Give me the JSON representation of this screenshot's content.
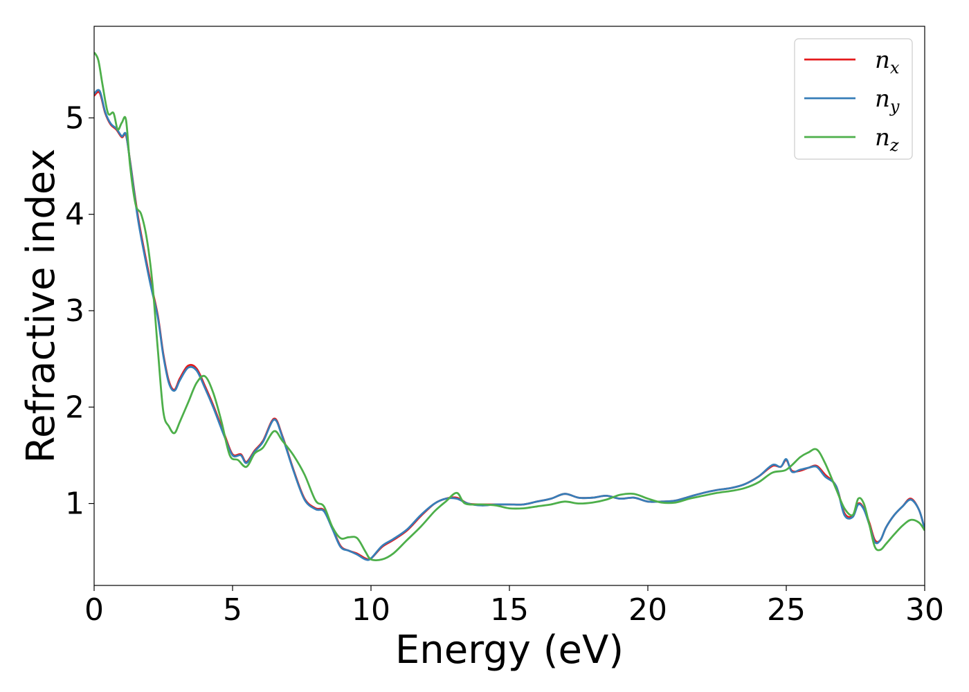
{
  "chart_data": {
    "type": "line",
    "title": "",
    "xlabel": "Energy (eV)",
    "ylabel": "Refractive index",
    "xlim": [
      0,
      30
    ],
    "ylim": [
      0.15,
      5.95
    ],
    "xticks": [
      0,
      5,
      10,
      15,
      20,
      25,
      30
    ],
    "yticks": [
      1,
      2,
      3,
      4,
      5
    ],
    "grid": false,
    "legend_position": "top-right",
    "series": [
      {
        "name": "n_x",
        "name_base": "n",
        "name_sub": "x",
        "color": "#e41a1c",
        "x": [
          0,
          0.2,
          0.4,
          0.6,
          0.8,
          1.0,
          1.15,
          1.3,
          1.6,
          2.0,
          2.3,
          2.5,
          2.7,
          2.9,
          3.1,
          3.4,
          3.7,
          4.0,
          4.3,
          4.7,
          5.0,
          5.3,
          5.5,
          5.8,
          6.1,
          6.5,
          6.8,
          7.2,
          7.6,
          8.0,
          8.3,
          8.6,
          8.9,
          9.2,
          9.5,
          9.8,
          10.0,
          10.4,
          10.8,
          11.3,
          11.8,
          12.3,
          12.7,
          13.1,
          13.5,
          14.0,
          14.5,
          15.0,
          15.5,
          16.0,
          16.5,
          17.0,
          17.5,
          18.0,
          18.5,
          19.0,
          19.5,
          20.0,
          20.5,
          21.0,
          21.5,
          22.0,
          22.5,
          23.0,
          23.5,
          24.0,
          24.5,
          24.8,
          25.0,
          25.2,
          25.5,
          25.8,
          26.1,
          26.4,
          26.8,
          27.1,
          27.4,
          27.6,
          27.8,
          28.0,
          28.2,
          28.4,
          28.6,
          28.9,
          29.2,
          29.5,
          29.8,
          30.0
        ],
        "y": [
          5.23,
          5.26,
          5.05,
          4.93,
          4.88,
          4.8,
          4.82,
          4.55,
          3.95,
          3.35,
          2.95,
          2.55,
          2.27,
          2.18,
          2.3,
          2.43,
          2.4,
          2.22,
          2.02,
          1.72,
          1.51,
          1.51,
          1.43,
          1.55,
          1.65,
          1.88,
          1.7,
          1.35,
          1.05,
          0.95,
          0.93,
          0.75,
          0.56,
          0.51,
          0.48,
          0.43,
          0.43,
          0.55,
          0.62,
          0.72,
          0.87,
          1.0,
          1.05,
          1.06,
          1.0,
          0.99,
          0.99,
          0.99,
          0.99,
          1.02,
          1.05,
          1.1,
          1.06,
          1.06,
          1.08,
          1.05,
          1.06,
          1.02,
          1.02,
          1.03,
          1.07,
          1.11,
          1.14,
          1.16,
          1.2,
          1.28,
          1.39,
          1.38,
          1.45,
          1.34,
          1.34,
          1.37,
          1.39,
          1.3,
          1.18,
          0.9,
          0.87,
          1.0,
          0.95,
          0.8,
          0.62,
          0.62,
          0.75,
          0.88,
          0.97,
          1.05,
          0.93,
          0.73
        ]
      },
      {
        "name": "n_y",
        "name_base": "n",
        "name_sub": "y",
        "color": "#377eb8",
        "x": [
          0,
          0.2,
          0.4,
          0.6,
          0.8,
          1.0,
          1.15,
          1.3,
          1.6,
          2.0,
          2.3,
          2.5,
          2.7,
          2.9,
          3.1,
          3.4,
          3.7,
          4.0,
          4.3,
          4.7,
          5.0,
          5.3,
          5.5,
          5.8,
          6.1,
          6.5,
          6.8,
          7.2,
          7.6,
          8.0,
          8.3,
          8.6,
          8.9,
          9.2,
          9.5,
          9.8,
          10.0,
          10.4,
          10.8,
          11.3,
          11.8,
          12.3,
          12.7,
          13.1,
          13.5,
          14.0,
          14.5,
          15.0,
          15.5,
          16.0,
          16.5,
          17.0,
          17.5,
          18.0,
          18.5,
          19.0,
          19.5,
          20.0,
          20.5,
          21.0,
          21.5,
          22.0,
          22.5,
          23.0,
          23.5,
          24.0,
          24.5,
          24.8,
          25.0,
          25.2,
          25.5,
          25.8,
          26.1,
          26.4,
          26.8,
          27.1,
          27.4,
          27.6,
          27.8,
          28.0,
          28.2,
          28.4,
          28.6,
          28.9,
          29.2,
          29.5,
          29.8,
          30.0
        ],
        "y": [
          5.25,
          5.28,
          5.06,
          4.94,
          4.89,
          4.81,
          4.83,
          4.54,
          3.92,
          3.32,
          2.93,
          2.53,
          2.25,
          2.17,
          2.28,
          2.41,
          2.38,
          2.2,
          2.0,
          1.7,
          1.5,
          1.5,
          1.42,
          1.54,
          1.64,
          1.87,
          1.69,
          1.34,
          1.04,
          0.94,
          0.92,
          0.74,
          0.55,
          0.51,
          0.47,
          0.42,
          0.43,
          0.56,
          0.63,
          0.73,
          0.88,
          1.0,
          1.05,
          1.05,
          1.0,
          0.98,
          0.99,
          0.99,
          0.99,
          1.02,
          1.05,
          1.1,
          1.06,
          1.06,
          1.08,
          1.05,
          1.06,
          1.02,
          1.02,
          1.03,
          1.07,
          1.11,
          1.14,
          1.16,
          1.2,
          1.28,
          1.4,
          1.38,
          1.46,
          1.33,
          1.35,
          1.37,
          1.38,
          1.28,
          1.18,
          0.88,
          0.86,
          0.99,
          0.94,
          0.78,
          0.6,
          0.62,
          0.75,
          0.88,
          0.97,
          1.04,
          0.93,
          0.73
        ]
      },
      {
        "name": "n_z",
        "name_base": "n",
        "name_sub": "z",
        "color": "#4daf4a",
        "x": [
          0,
          0.15,
          0.3,
          0.5,
          0.7,
          0.85,
          1.0,
          1.15,
          1.3,
          1.5,
          1.7,
          1.9,
          2.1,
          2.3,
          2.5,
          2.7,
          2.9,
          3.1,
          3.4,
          3.7,
          4.0,
          4.3,
          4.6,
          4.9,
          5.2,
          5.5,
          5.8,
          6.1,
          6.5,
          6.8,
          7.2,
          7.6,
          8.0,
          8.3,
          8.6,
          8.9,
          9.2,
          9.5,
          9.8,
          10.0,
          10.4,
          10.8,
          11.3,
          11.8,
          12.3,
          12.7,
          13.1,
          13.4,
          14.0,
          14.5,
          15.0,
          15.5,
          16.0,
          16.5,
          17.0,
          17.5,
          18.0,
          18.5,
          19.0,
          19.5,
          20.0,
          20.5,
          21.0,
          21.5,
          22.0,
          22.5,
          23.0,
          23.5,
          24.0,
          24.5,
          25.0,
          25.5,
          25.8,
          26.1,
          26.4,
          26.8,
          27.1,
          27.4,
          27.6,
          27.8,
          28.0,
          28.2,
          28.4,
          28.6,
          28.9,
          29.2,
          29.5,
          29.8,
          30.0
        ],
        "y": [
          5.68,
          5.6,
          5.35,
          5.05,
          5.05,
          4.88,
          4.95,
          4.98,
          4.5,
          4.1,
          4.0,
          3.75,
          3.3,
          2.6,
          1.95,
          1.8,
          1.73,
          1.85,
          2.05,
          2.25,
          2.32,
          2.15,
          1.85,
          1.5,
          1.45,
          1.38,
          1.52,
          1.58,
          1.75,
          1.65,
          1.5,
          1.3,
          1.03,
          0.97,
          0.76,
          0.64,
          0.65,
          0.64,
          0.5,
          0.42,
          0.42,
          0.48,
          0.62,
          0.76,
          0.92,
          1.02,
          1.11,
          1.0,
          0.99,
          0.98,
          0.95,
          0.95,
          0.97,
          0.99,
          1.02,
          1.0,
          1.01,
          1.04,
          1.09,
          1.1,
          1.05,
          1.01,
          1.01,
          1.05,
          1.08,
          1.11,
          1.13,
          1.16,
          1.22,
          1.32,
          1.35,
          1.48,
          1.53,
          1.56,
          1.42,
          1.15,
          0.95,
          0.88,
          1.05,
          1.0,
          0.78,
          0.55,
          0.52,
          0.58,
          0.68,
          0.77,
          0.83,
          0.8,
          0.72
        ]
      }
    ]
  }
}
